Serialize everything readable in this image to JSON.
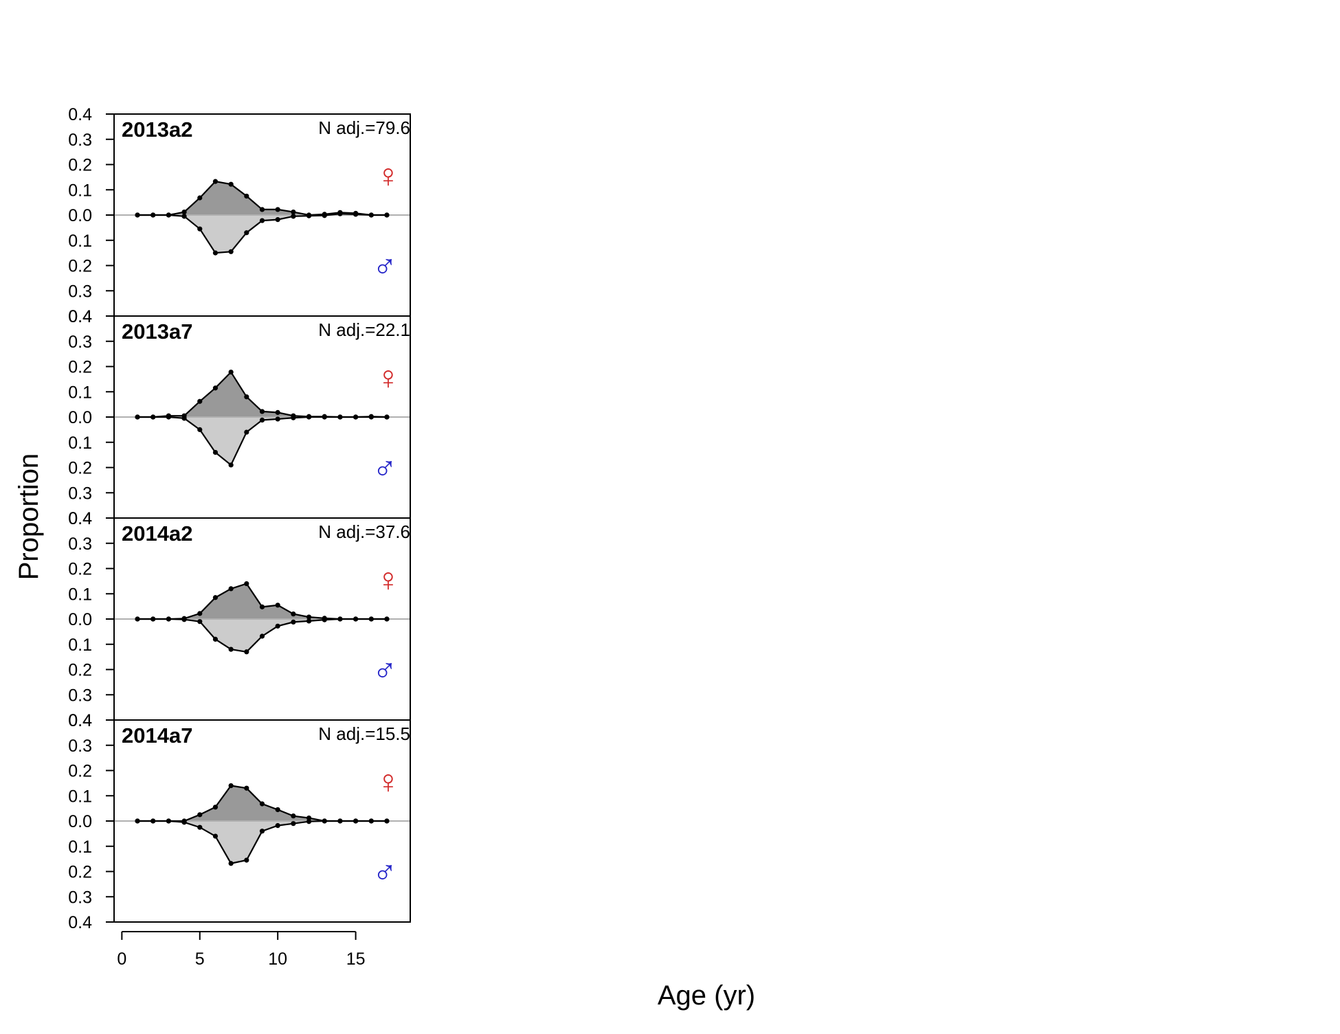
{
  "chart_data": {
    "type": "area",
    "xlabel": "Age (yr)",
    "ylabel": "Proportion",
    "xlim": [
      -0.5,
      18.5
    ],
    "x_ticks": [
      0,
      5,
      10,
      15
    ],
    "ylim": [
      -0.4,
      0.4
    ],
    "y_tick_labels": [
      "0.4",
      "0.3",
      "0.2",
      "0.1",
      "0.0",
      "0.1",
      "0.2",
      "0.3",
      "0.4"
    ],
    "y_tick_values": [
      0.4,
      0.3,
      0.2,
      0.1,
      0.0,
      -0.1,
      -0.2,
      -0.3,
      -0.4
    ],
    "female_symbol": "♀",
    "male_symbol": "♂",
    "colors": {
      "female_symbol": "#d22a2a",
      "male_symbol": "#2222c8",
      "female_fill": "#999999",
      "male_fill": "#cccccc",
      "zero_line": "#b0b0b0",
      "points": "#000000"
    },
    "x": [
      1,
      2,
      3,
      4,
      5,
      6,
      7,
      8,
      9,
      10,
      11,
      12,
      13,
      14,
      15,
      16,
      17
    ],
    "panels": [
      {
        "label": "2013a2",
        "n_adj": "N adj.=79.6",
        "female": [
          0.0,
          0.0,
          0.0,
          0.012,
          0.068,
          0.133,
          0.122,
          0.075,
          0.022,
          0.022,
          0.012,
          0.0,
          0.003,
          0.01,
          0.007,
          0.0,
          0.0
        ],
        "male": [
          0.0,
          0.0,
          0.0,
          -0.005,
          -0.055,
          -0.15,
          -0.145,
          -0.07,
          -0.022,
          -0.018,
          -0.005,
          -0.003,
          -0.002,
          0.005,
          0.003,
          0.0,
          0.0
        ]
      },
      {
        "label": "2013a7",
        "n_adj": "N adj.=22.1",
        "female": [
          0.0,
          0.0,
          0.005,
          0.005,
          0.062,
          0.115,
          0.178,
          0.08,
          0.022,
          0.018,
          0.005,
          0.002,
          0.002,
          0.0,
          0.0,
          0.002,
          0.0
        ],
        "male": [
          0.0,
          0.0,
          0.0,
          -0.005,
          -0.05,
          -0.14,
          -0.19,
          -0.06,
          -0.012,
          -0.008,
          -0.003,
          0.0,
          0.0,
          0.0,
          0.0,
          0.0,
          0.0
        ]
      },
      {
        "label": "2014a2",
        "n_adj": "N adj.=37.6",
        "female": [
          0.0,
          0.0,
          0.0,
          0.002,
          0.022,
          0.085,
          0.12,
          0.14,
          0.048,
          0.055,
          0.02,
          0.008,
          0.003,
          0.0,
          0.0,
          0.0,
          0.0
        ],
        "male": [
          0.0,
          0.0,
          0.0,
          -0.002,
          -0.01,
          -0.08,
          -0.12,
          -0.13,
          -0.068,
          -0.028,
          -0.012,
          -0.008,
          -0.003,
          0.0,
          0.0,
          0.0,
          0.0
        ]
      },
      {
        "label": "2014a7",
        "n_adj": "N adj.=15.5",
        "female": [
          0.0,
          0.0,
          0.0,
          0.0,
          0.025,
          0.055,
          0.14,
          0.13,
          0.068,
          0.045,
          0.02,
          0.012,
          0.0,
          0.0,
          0.0,
          0.0,
          0.0
        ],
        "male": [
          0.0,
          0.0,
          0.0,
          -0.005,
          -0.025,
          -0.06,
          -0.168,
          -0.155,
          -0.04,
          -0.018,
          -0.01,
          -0.002,
          0.0,
          0.0,
          0.0,
          0.0,
          0.0
        ]
      }
    ]
  }
}
